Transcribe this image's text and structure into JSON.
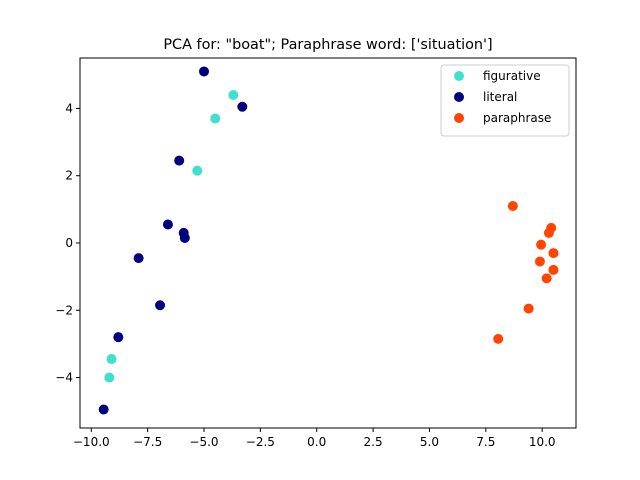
{
  "chart_data": {
    "type": "scatter",
    "title": "PCA for: \"boat\"; Paraphrase word: ['situation']",
    "xlabel": "",
    "ylabel": "",
    "xlim": [
      -10.5,
      11.5
    ],
    "ylim": [
      -5.5,
      5.5
    ],
    "xticks": [
      -10.0,
      -7.5,
      -5.0,
      -2.5,
      0.0,
      2.5,
      5.0,
      7.5,
      10.0
    ],
    "xtick_labels": [
      "−10.0",
      "−7.5",
      "−5.0",
      "−2.5",
      "0.0",
      "2.5",
      "5.0",
      "7.5",
      "10.0"
    ],
    "yticks": [
      4,
      2,
      0,
      -2,
      -4
    ],
    "ytick_labels": [
      "4",
      "2",
      "0",
      "−2",
      "−4"
    ],
    "grid": false,
    "legend_position": "top-right",
    "series": [
      {
        "name": "figurative",
        "color": "#40e0d0",
        "points": [
          [
            -3.7,
            4.4
          ],
          [
            -4.5,
            3.7
          ],
          [
            -5.3,
            2.15
          ],
          [
            -9.1,
            -3.45
          ],
          [
            -9.2,
            -4.0
          ]
        ]
      },
      {
        "name": "literal",
        "color": "#000080",
        "points": [
          [
            -5.0,
            5.1
          ],
          [
            -3.3,
            4.05
          ],
          [
            -6.1,
            2.45
          ],
          [
            -6.6,
            0.55
          ],
          [
            -5.9,
            0.3
          ],
          [
            -5.85,
            0.15
          ],
          [
            -7.9,
            -0.45
          ],
          [
            -6.95,
            -1.85
          ],
          [
            -8.8,
            -2.8
          ],
          [
            -9.45,
            -4.95
          ]
        ]
      },
      {
        "name": "paraphrase",
        "color": "#ff4500",
        "points": [
          [
            8.7,
            1.1
          ],
          [
            10.4,
            0.45
          ],
          [
            10.3,
            0.3
          ],
          [
            9.95,
            -0.05
          ],
          [
            10.5,
            -0.3
          ],
          [
            9.9,
            -0.55
          ],
          [
            10.5,
            -0.8
          ],
          [
            10.2,
            -1.05
          ],
          [
            9.4,
            -1.95
          ],
          [
            8.05,
            -2.85
          ]
        ]
      }
    ]
  }
}
